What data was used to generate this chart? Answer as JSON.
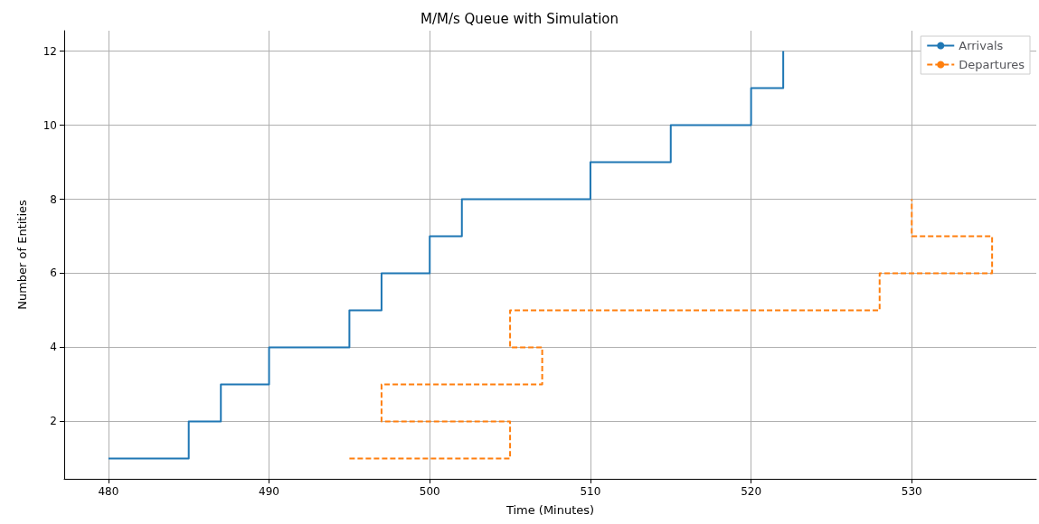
{
  "chart_data": {
    "type": "step",
    "title": "M/M/s Queue with Simulation",
    "xlabel": "Time (Minutes)",
    "ylabel": "Number of Entities",
    "series": [
      {
        "name": "Arrivals",
        "color": "#1f77b4",
        "line_style": "solid",
        "x": [
          480,
          485,
          487,
          490,
          495,
          497,
          500,
          502,
          510,
          515,
          520,
          522
        ],
        "values": [
          1,
          2,
          3,
          4,
          5,
          6,
          7,
          8,
          9,
          10,
          11,
          12
        ]
      },
      {
        "name": "Departures",
        "color": "#ff7f0e",
        "line_style": "dashed",
        "x": [
          495,
          505,
          497,
          507,
          505,
          528,
          535,
          530
        ],
        "values": [
          1,
          2,
          3,
          4,
          5,
          6,
          7,
          8
        ]
      }
    ],
    "xlim": [
      477.25,
      537.75
    ],
    "xticks": [
      480,
      490,
      500,
      510,
      520,
      530
    ],
    "ylim": [
      0.45,
      12.55
    ],
    "yticks": [
      2,
      4,
      6,
      8,
      10,
      12
    ],
    "grid": true,
    "legend": "top right",
    "marker": "none"
  }
}
